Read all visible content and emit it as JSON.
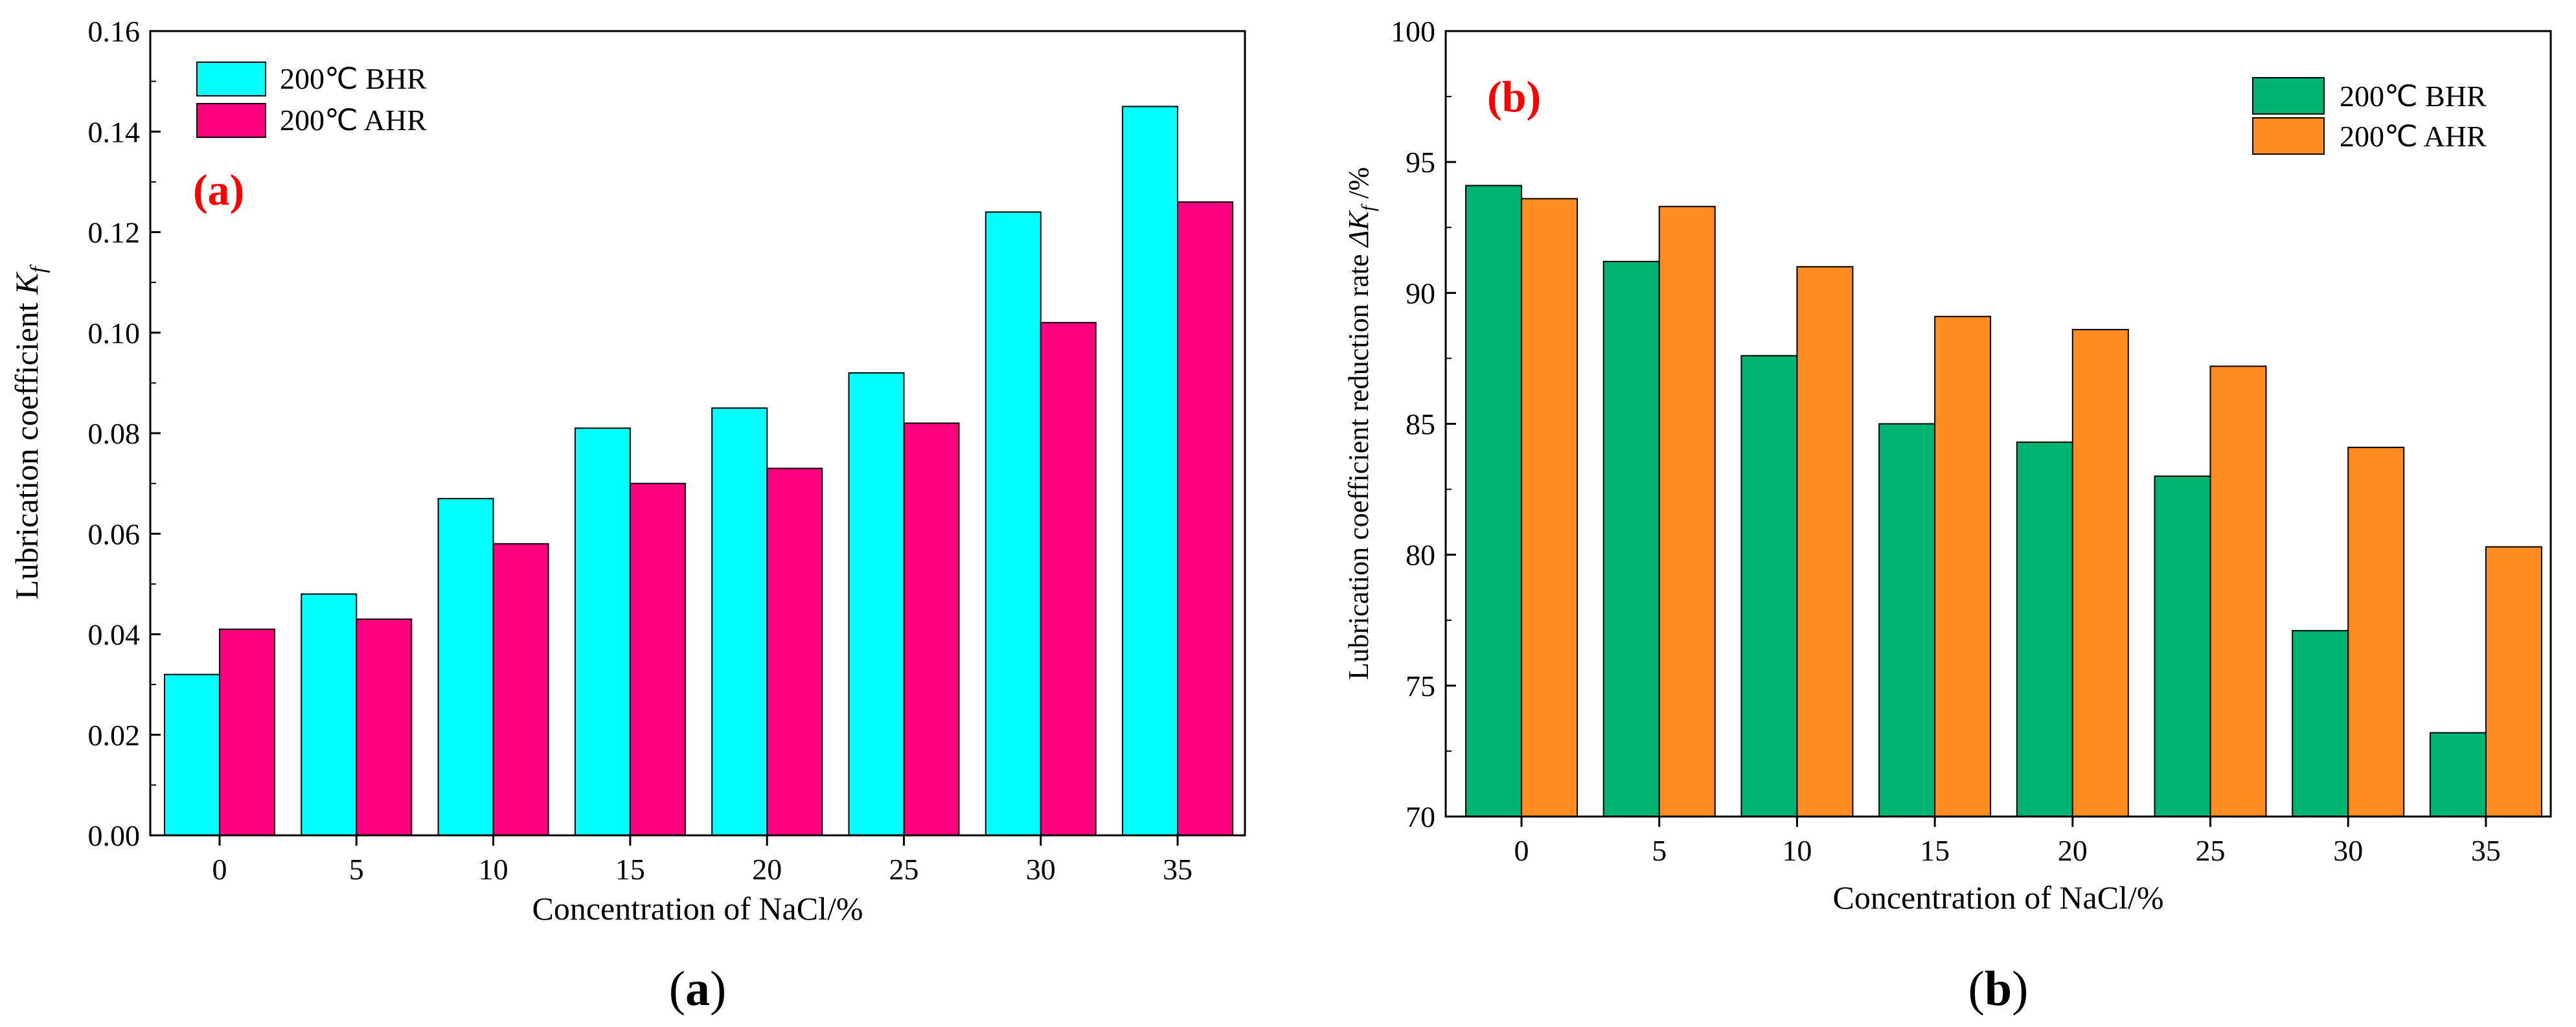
{
  "chart_data": [
    {
      "type": "bar",
      "panel_tag": "(a)",
      "caption_open": "(",
      "caption_letter": "a",
      "caption_close": ")",
      "xlabel": "Concentration of NaCl/%",
      "ylabel_main": "Lubrication coefficient ",
      "ylabel_symbol": "K",
      "ylabel_sub": "f",
      "categories": [
        "0",
        "5",
        "10",
        "15",
        "20",
        "25",
        "30",
        "35"
      ],
      "ylim": [
        0,
        0.16
      ],
      "yticks": [
        "0.00",
        "0.02",
        "0.04",
        "0.06",
        "0.08",
        "0.10",
        "0.12",
        "0.14",
        "0.16"
      ],
      "legend_position": "top-left",
      "series": [
        {
          "name": "200℃ BHR",
          "color": "#00FFFF",
          "values": [
            0.032,
            0.048,
            0.067,
            0.081,
            0.085,
            0.092,
            0.124,
            0.145
          ]
        },
        {
          "name": "200℃ AHR",
          "color": "#FF0080",
          "values": [
            0.041,
            0.043,
            0.058,
            0.07,
            0.073,
            0.082,
            0.102,
            0.126
          ]
        }
      ]
    },
    {
      "type": "bar",
      "panel_tag": "(b)",
      "caption_open": "(",
      "caption_letter": "b",
      "caption_close": ")",
      "xlabel": "Concentration of NaCl/%",
      "ylabel_main": "Lubrication coefficient reduction rate ",
      "ylabel_symbol": "ΔK",
      "ylabel_sub": "f",
      "ylabel_tail": " /%",
      "categories": [
        "0",
        "5",
        "10",
        "15",
        "20",
        "25",
        "30",
        "35"
      ],
      "ylim": [
        70,
        100
      ],
      "yticks": [
        "70",
        "75",
        "80",
        "85",
        "90",
        "95",
        "100"
      ],
      "legend_position": "top-right",
      "series": [
        {
          "name": "200℃ BHR",
          "color": "#00B371",
          "values": [
            94.1,
            91.2,
            87.6,
            85.0,
            84.3,
            83.0,
            77.1,
            73.2
          ]
        },
        {
          "name": "200℃ AHR",
          "color": "#FF8C21",
          "values": [
            93.6,
            93.3,
            91.0,
            89.1,
            88.6,
            87.2,
            84.1,
            80.3
          ]
        }
      ]
    }
  ]
}
